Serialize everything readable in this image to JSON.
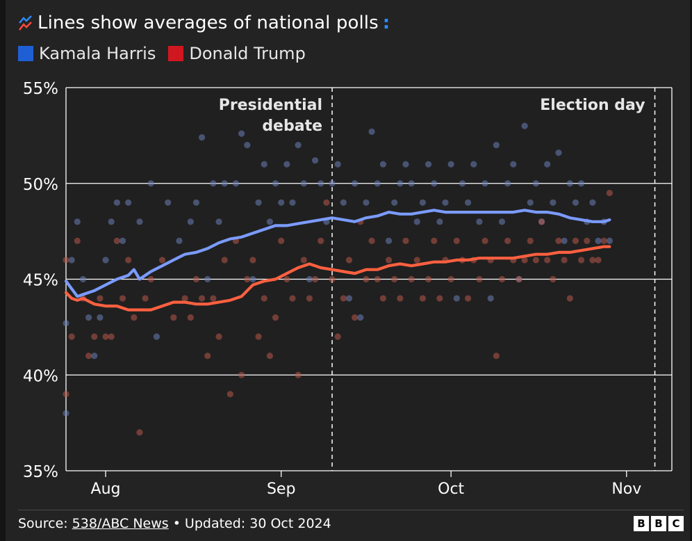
{
  "header": {
    "title": "Lines show averages of national polls",
    "title_icon": "line-chart-icon",
    "title_dot": ":"
  },
  "legend": [
    {
      "label": "Kamala Harris",
      "color": "#1f5fd4"
    },
    {
      "label": "Donald Trump",
      "color": "#d0171f"
    }
  ],
  "footer": {
    "source_label": "Source:",
    "source_link": "538/ABC News",
    "updated": "• Updated: 30 Oct 2024",
    "logo": [
      "B",
      "B",
      "C"
    ]
  },
  "colors": {
    "harris_line": "#7b9bff",
    "trump_line": "#ff6040",
    "harris_dot": "#6c7fb8",
    "trump_dot": "#b8584a",
    "grid": "#ffffff",
    "title_dot": "#2d8cff"
  },
  "chart_data": {
    "type": "line",
    "title": "Lines show averages of national polls",
    "xlabel": "",
    "ylabel": "",
    "ylim": [
      35,
      55
    ],
    "xlim": [
      -7,
      100
    ],
    "x_unit": "days since 1 Aug 2024",
    "yticks": [
      {
        "value": 35,
        "label": "35%"
      },
      {
        "value": 40,
        "label": "40%"
      },
      {
        "value": 45,
        "label": "45%"
      },
      {
        "value": 50,
        "label": "50%"
      },
      {
        "value": 55,
        "label": "55%"
      }
    ],
    "xticks": [
      {
        "value": 0,
        "label": "Aug"
      },
      {
        "value": 31,
        "label": "Sep"
      },
      {
        "value": 61,
        "label": "Oct"
      },
      {
        "value": 92,
        "label": "Nov"
      }
    ],
    "annotations": [
      {
        "x": 40,
        "lines": [
          "Presidential",
          "debate"
        ],
        "style": "dashed"
      },
      {
        "x": 97,
        "lines": [
          "Election day"
        ],
        "style": "dashed"
      }
    ],
    "series": [
      {
        "name": "Kamala Harris",
        "x": [
          -7,
          -6,
          -5,
          -4,
          -2,
          0,
          2,
          4,
          5,
          6,
          8,
          10,
          12,
          14,
          16,
          18,
          20,
          22,
          24,
          26,
          28,
          30,
          32,
          34,
          36,
          38,
          40,
          42,
          44,
          46,
          48,
          50,
          52,
          54,
          56,
          58,
          60,
          62,
          64,
          66,
          68,
          70,
          72,
          74,
          76,
          78,
          80,
          82,
          84,
          86,
          88,
          89
        ],
        "values": [
          44.9,
          44.5,
          44.1,
          44.2,
          44.4,
          44.7,
          45.0,
          45.2,
          45.5,
          45.0,
          45.4,
          45.7,
          46.0,
          46.3,
          46.4,
          46.6,
          46.9,
          47.1,
          47.2,
          47.4,
          47.6,
          47.8,
          47.8,
          47.9,
          48.0,
          48.1,
          48.2,
          48.1,
          48.0,
          48.2,
          48.3,
          48.5,
          48.4,
          48.4,
          48.5,
          48.6,
          48.5,
          48.5,
          48.5,
          48.5,
          48.5,
          48.5,
          48.5,
          48.6,
          48.5,
          48.5,
          48.4,
          48.2,
          48.1,
          48.0,
          48.0,
          48.1
        ]
      },
      {
        "name": "Donald Trump",
        "x": [
          -7,
          -6,
          -5,
          -4,
          -2,
          0,
          2,
          4,
          6,
          8,
          10,
          12,
          14,
          16,
          18,
          20,
          22,
          24,
          26,
          28,
          30,
          32,
          34,
          36,
          38,
          40,
          42,
          44,
          46,
          48,
          50,
          52,
          54,
          56,
          58,
          60,
          62,
          64,
          66,
          68,
          70,
          72,
          74,
          76,
          78,
          80,
          82,
          84,
          86,
          88,
          89
        ],
        "values": [
          44.3,
          44.0,
          43.9,
          44.0,
          43.7,
          43.6,
          43.6,
          43.4,
          43.4,
          43.4,
          43.6,
          43.8,
          43.8,
          43.7,
          43.7,
          43.8,
          43.9,
          44.1,
          44.7,
          44.9,
          45.0,
          45.3,
          45.6,
          45.8,
          45.6,
          45.5,
          45.4,
          45.3,
          45.5,
          45.5,
          45.7,
          45.8,
          45.7,
          45.8,
          45.9,
          45.9,
          46.0,
          46.0,
          46.1,
          46.1,
          46.1,
          46.1,
          46.2,
          46.3,
          46.3,
          46.4,
          46.4,
          46.5,
          46.6,
          46.7,
          46.7
        ]
      }
    ],
    "polls": [
      {
        "name": "Kamala Harris",
        "points": [
          [
            -7,
            38
          ],
          [
            -7,
            42.7
          ],
          [
            -6,
            46
          ],
          [
            -5,
            48
          ],
          [
            -4,
            45
          ],
          [
            -3,
            43
          ],
          [
            -2,
            41
          ],
          [
            -1,
            43
          ],
          [
            0,
            46
          ],
          [
            1,
            48
          ],
          [
            2,
            49
          ],
          [
            3,
            47
          ],
          [
            4,
            49
          ],
          [
            6,
            48
          ],
          [
            8,
            50
          ],
          [
            9,
            42
          ],
          [
            11,
            49
          ],
          [
            13,
            47
          ],
          [
            15,
            48
          ],
          [
            16,
            49
          ],
          [
            17,
            52.4
          ],
          [
            18,
            45
          ],
          [
            19,
            50
          ],
          [
            20,
            48
          ],
          [
            21,
            50
          ],
          [
            23,
            50
          ],
          [
            24,
            52.6
          ],
          [
            25,
            52
          ],
          [
            26,
            45
          ],
          [
            27,
            49
          ],
          [
            28,
            51
          ],
          [
            29,
            48
          ],
          [
            30,
            50
          ],
          [
            31,
            49
          ],
          [
            32,
            51
          ],
          [
            33,
            49
          ],
          [
            34,
            52
          ],
          [
            35,
            50
          ],
          [
            36,
            45
          ],
          [
            37,
            51.2
          ],
          [
            38,
            50
          ],
          [
            39,
            48
          ],
          [
            40,
            50
          ],
          [
            41,
            51
          ],
          [
            42,
            49
          ],
          [
            43,
            44
          ],
          [
            44,
            50
          ],
          [
            45,
            43
          ],
          [
            46,
            49
          ],
          [
            47,
            52.7
          ],
          [
            48,
            50
          ],
          [
            49,
            51
          ],
          [
            50,
            47
          ],
          [
            51,
            49
          ],
          [
            52,
            50
          ],
          [
            53,
            51
          ],
          [
            54,
            50
          ],
          [
            55,
            48
          ],
          [
            56,
            49
          ],
          [
            57,
            51
          ],
          [
            58,
            50
          ],
          [
            59,
            48
          ],
          [
            60,
            49
          ],
          [
            61,
            51
          ],
          [
            62,
            44
          ],
          [
            63,
            50
          ],
          [
            64,
            49
          ],
          [
            65,
            51
          ],
          [
            66,
            48
          ],
          [
            67,
            50
          ],
          [
            68,
            44
          ],
          [
            69,
            52
          ],
          [
            70,
            48
          ],
          [
            71,
            50
          ],
          [
            72,
            51
          ],
          [
            73,
            45
          ],
          [
            74,
            53
          ],
          [
            75,
            49
          ],
          [
            76,
            50
          ],
          [
            77,
            48
          ],
          [
            78,
            51
          ],
          [
            79,
            49
          ],
          [
            80,
            51.6
          ],
          [
            81,
            47
          ],
          [
            82,
            50
          ],
          [
            83,
            49
          ],
          [
            84,
            50
          ],
          [
            85,
            48
          ],
          [
            86,
            49
          ],
          [
            87,
            47
          ],
          [
            88,
            48
          ],
          [
            89,
            47
          ]
        ]
      },
      {
        "name": "Donald Trump",
        "points": [
          [
            -7,
            39
          ],
          [
            -7,
            46
          ],
          [
            -6,
            42
          ],
          [
            -5,
            47
          ],
          [
            -4,
            44
          ],
          [
            -3,
            41
          ],
          [
            -2,
            42
          ],
          [
            -1,
            44
          ],
          [
            0,
            42
          ],
          [
            1,
            42
          ],
          [
            2,
            47
          ],
          [
            3,
            44
          ],
          [
            4,
            46
          ],
          [
            5,
            43
          ],
          [
            6,
            37
          ],
          [
            7,
            44
          ],
          [
            8,
            45
          ],
          [
            10,
            46
          ],
          [
            12,
            43
          ],
          [
            14,
            44
          ],
          [
            15,
            43
          ],
          [
            16,
            45
          ],
          [
            17,
            44
          ],
          [
            18,
            41
          ],
          [
            19,
            44
          ],
          [
            20,
            42
          ],
          [
            21,
            46
          ],
          [
            22,
            39
          ],
          [
            23,
            47
          ],
          [
            24,
            40
          ],
          [
            25,
            45
          ],
          [
            26,
            46
          ],
          [
            27,
            42
          ],
          [
            28,
            44
          ],
          [
            29,
            41
          ],
          [
            30,
            43
          ],
          [
            31,
            47
          ],
          [
            32,
            45
          ],
          [
            33,
            44
          ],
          [
            34,
            40
          ],
          [
            35,
            46
          ],
          [
            36,
            44
          ],
          [
            37,
            45
          ],
          [
            38,
            47
          ],
          [
            39,
            49
          ],
          [
            40,
            45
          ],
          [
            41,
            42
          ],
          [
            42,
            44
          ],
          [
            43,
            46
          ],
          [
            44,
            43
          ],
          [
            45,
            48
          ],
          [
            46,
            45
          ],
          [
            47,
            47
          ],
          [
            48,
            45
          ],
          [
            49,
            44
          ],
          [
            50,
            46
          ],
          [
            51,
            45
          ],
          [
            52,
            44
          ],
          [
            53,
            47
          ],
          [
            54,
            45
          ],
          [
            55,
            46
          ],
          [
            56,
            44
          ],
          [
            57,
            45
          ],
          [
            58,
            47
          ],
          [
            59,
            44
          ],
          [
            60,
            46
          ],
          [
            61,
            45
          ],
          [
            62,
            47
          ],
          [
            63,
            46
          ],
          [
            64,
            44
          ],
          [
            65,
            46
          ],
          [
            66,
            45
          ],
          [
            67,
            47
          ],
          [
            68,
            46
          ],
          [
            69,
            41
          ],
          [
            70,
            45
          ],
          [
            71,
            47
          ],
          [
            72,
            46
          ],
          [
            73,
            45
          ],
          [
            74,
            46
          ],
          [
            75,
            47
          ],
          [
            76,
            46
          ],
          [
            77,
            48
          ],
          [
            78,
            46
          ],
          [
            79,
            45
          ],
          [
            80,
            47
          ],
          [
            81,
            46
          ],
          [
            82,
            44
          ],
          [
            83,
            47
          ],
          [
            84,
            46
          ],
          [
            85,
            47
          ],
          [
            86,
            46
          ],
          [
            87,
            46
          ],
          [
            88,
            47
          ],
          [
            89,
            49.5
          ]
        ]
      }
    ]
  }
}
